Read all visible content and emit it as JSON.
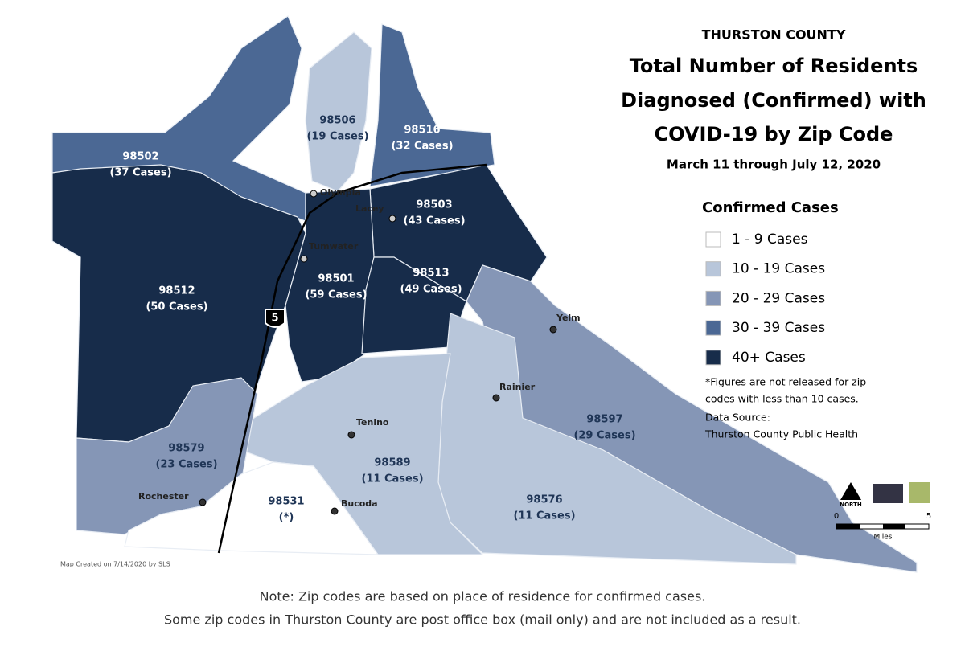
{
  "header": {
    "county": "THURSTON COUNTY",
    "title_lines": [
      "Total Number of Residents",
      "Diagnosed (Confirmed) with",
      "COVID-19 by Zip Code"
    ],
    "dates": "March 11 through July 12, 2020"
  },
  "legend": {
    "title": "Confirmed Cases",
    "items": [
      {
        "label": "1 - 9 Cases",
        "color": "#ffffff"
      },
      {
        "label": "10 - 19 Cases",
        "color": "#b8c6da"
      },
      {
        "label": "20 - 29 Cases",
        "color": "#8596b6"
      },
      {
        "label": "30 - 39 Cases",
        "color": "#4b6894"
      },
      {
        "label": "40+ Cases",
        "color": "#172c4a"
      }
    ]
  },
  "footnote": [
    "*Figures are not released for zip",
    "codes with less than 10 cases.",
    "Data Source:",
    "Thurston County Public Health"
  ],
  "regions": [
    {
      "zip": "98502",
      "cases": "(37 Cases)",
      "color": "#4b6894"
    },
    {
      "zip": "98506",
      "cases": "(19 Cases)",
      "color": "#b8c6da"
    },
    {
      "zip": "98516",
      "cases": "(32 Cases)",
      "color": "#4b6894"
    },
    {
      "zip": "98512",
      "cases": "(50 Cases)",
      "color": "#172c4a"
    },
    {
      "zip": "98503",
      "cases": "(43 Cases)",
      "color": "#172c4a"
    },
    {
      "zip": "98501",
      "cases": "(59 Cases)",
      "color": "#172c4a"
    },
    {
      "zip": "98513",
      "cases": "(49 Cases)",
      "color": "#172c4a"
    },
    {
      "zip": "98597",
      "cases": "(29 Cases)",
      "color": "#8596b6"
    },
    {
      "zip": "98576",
      "cases": "(11 Cases)",
      "color": "#b8c6da"
    },
    {
      "zip": "98589",
      "cases": "(11 Cases)",
      "color": "#b8c6da"
    },
    {
      "zip": "98579",
      "cases": "(23 Cases)",
      "color": "#8596b6"
    },
    {
      "zip": "98531",
      "cases": "(*)",
      "color": "#ffffff"
    }
  ],
  "places": [
    "Olympia",
    "Lacey",
    "Tumwater",
    "Yelm",
    "Rainier",
    "Tenino",
    "Rochester",
    "Bucoda"
  ],
  "highway": "5",
  "scale": {
    "north": "NORTH",
    "start": "0",
    "end": "5",
    "unit": "Miles"
  },
  "credit": "Map Created on 7/14/2020 by SLS",
  "note_lines": [
    "Note: Zip codes are based on place of residence for confirmed cases.",
    "Some zip codes in Thurston County are post office box (mail only) and are not included as a result."
  ]
}
